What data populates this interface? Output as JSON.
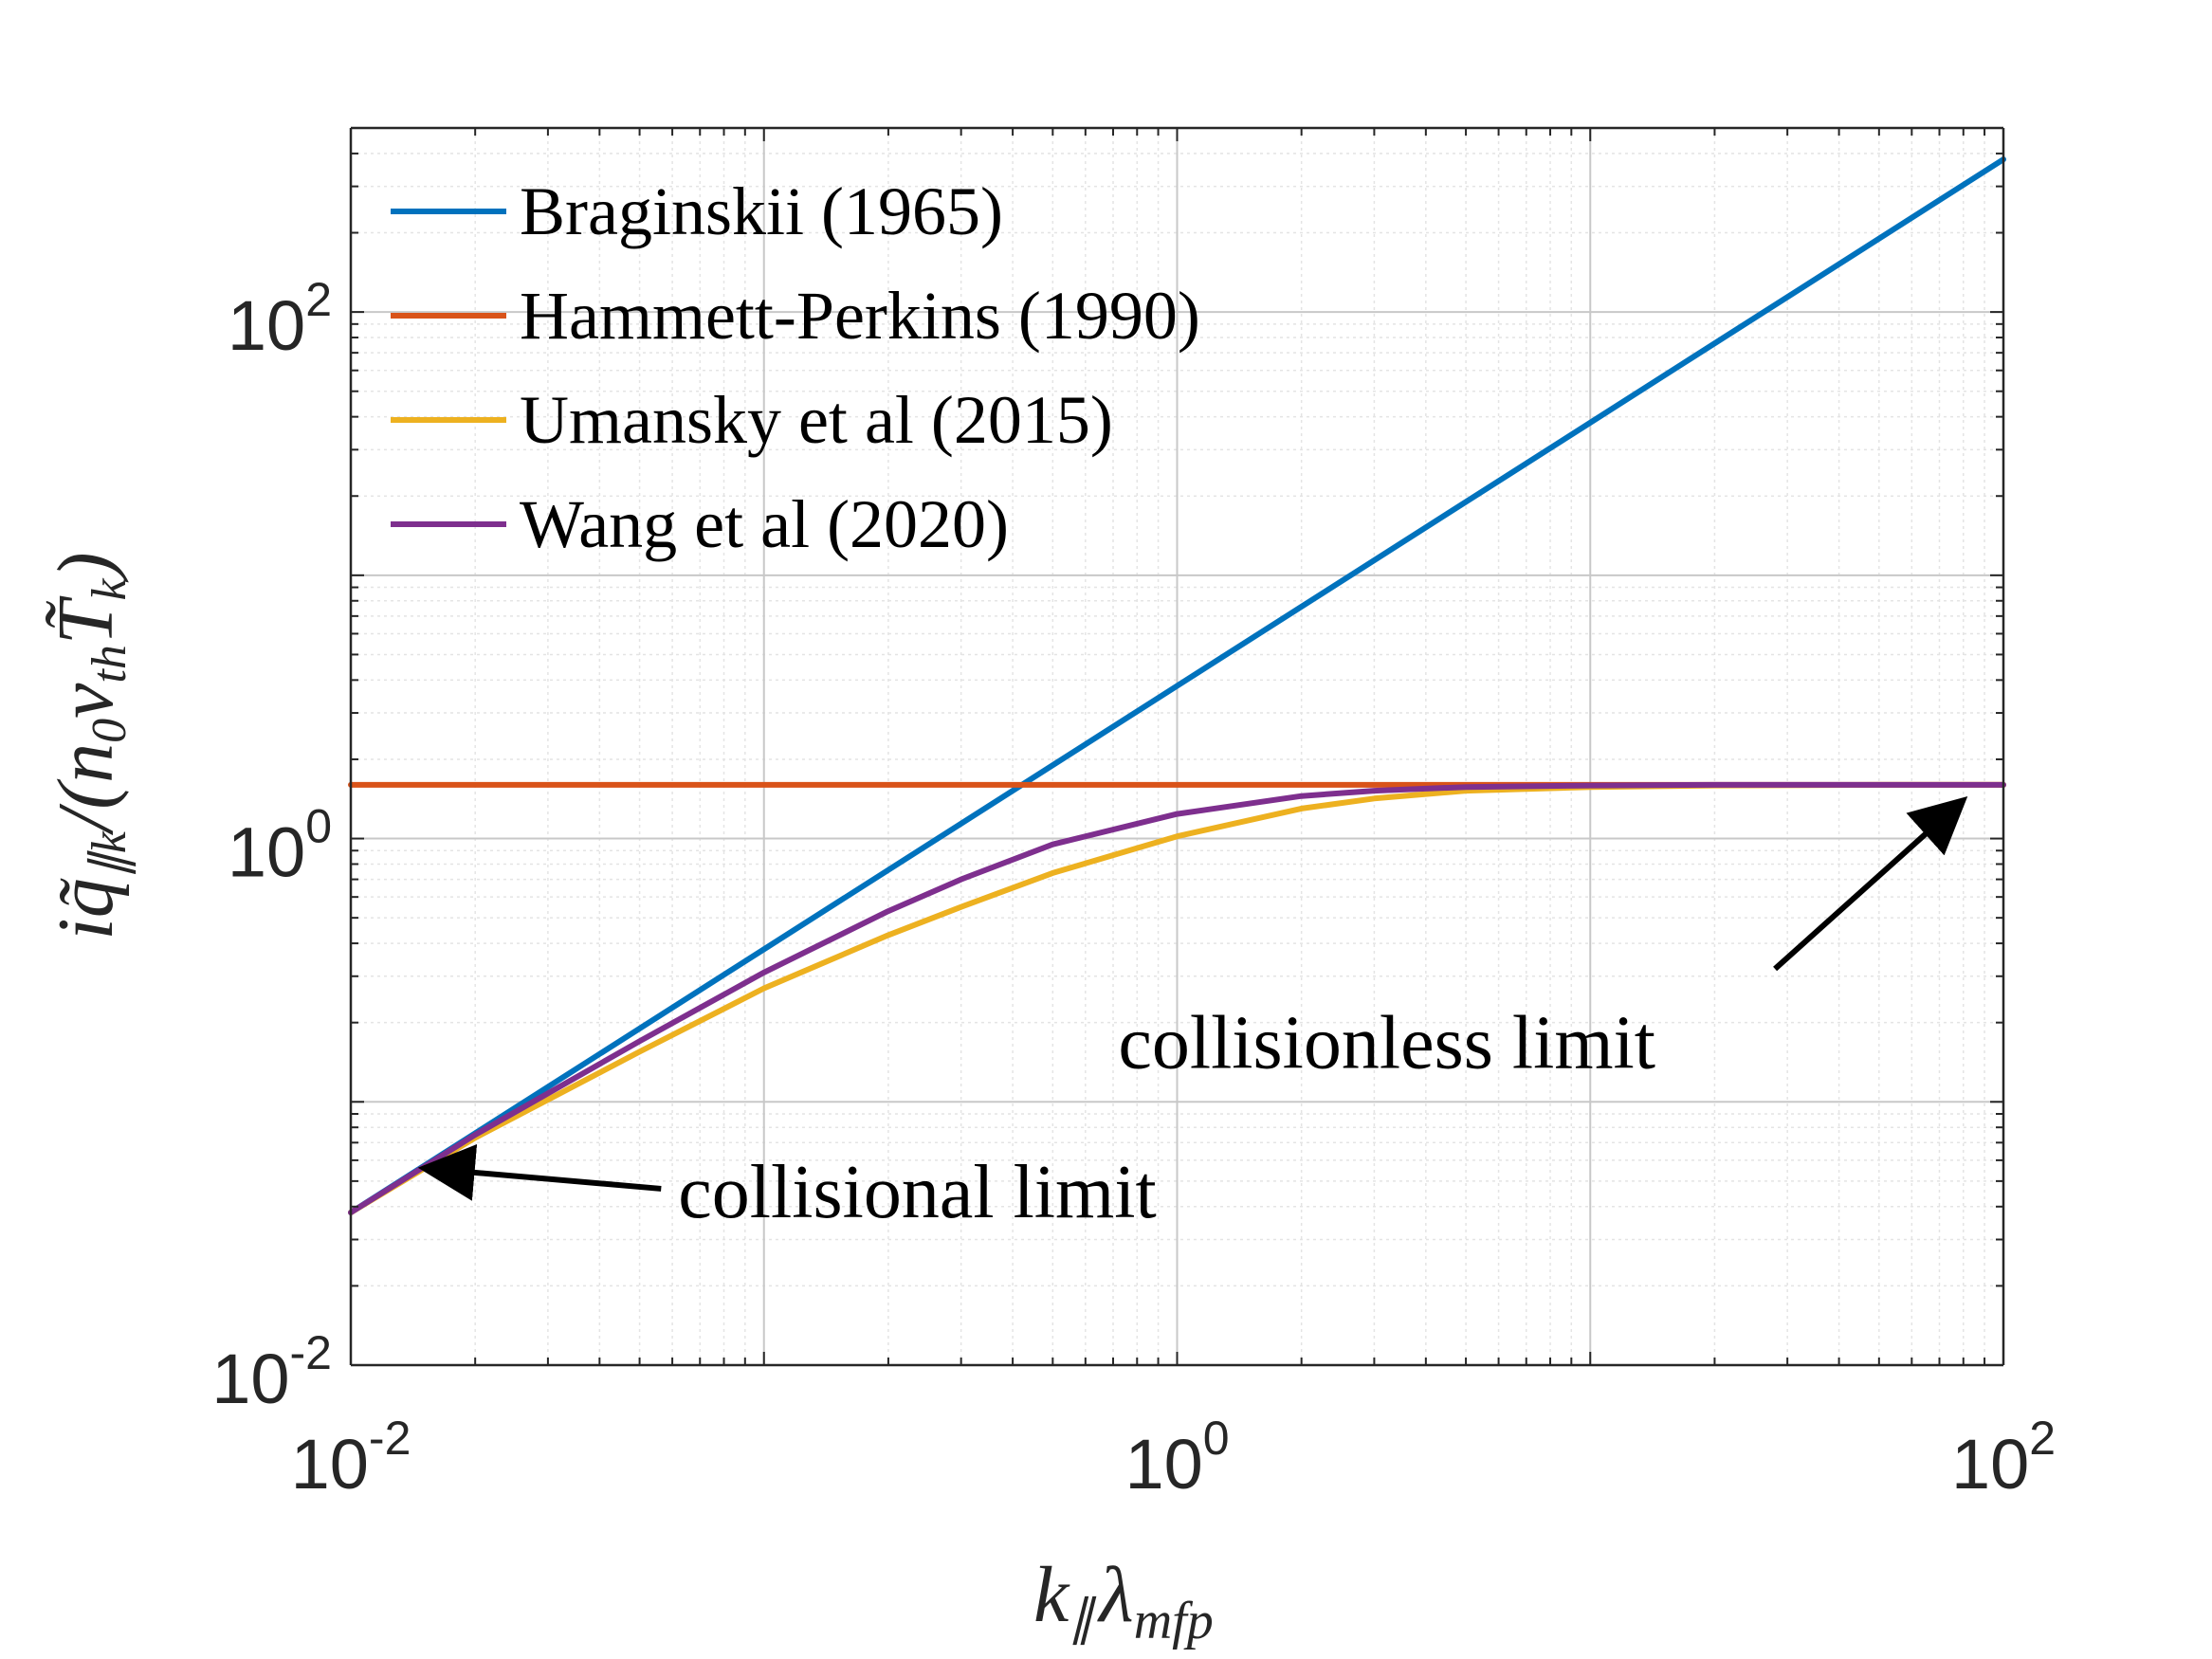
{
  "chart_data": {
    "type": "line",
    "scale": {
      "x": "log",
      "y": "log"
    },
    "xlim": [
      0.01,
      100
    ],
    "ylim": [
      0.01,
      500
    ],
    "grid": true,
    "minor_grid": true,
    "xlabel": "k‖ λ_mfp",
    "xlabel_parts": {
      "base": "k",
      "sub": "∥",
      "lambda": "λ",
      "lambda_sub": "mfp"
    },
    "ylabel": "iq̃‖k/(n0 vth T̃k)",
    "ylabel_parts": {
      "i": "i",
      "q": "q̃",
      "q_sub": "∥k",
      "sep": "/(",
      "n": "n",
      "n_sub": "0",
      "v": "v",
      "v_sub": "th",
      "T": "T̃",
      "T_sub": "k",
      "close": ")"
    },
    "x_ticks": [
      {
        "base": "10",
        "exp": "-2",
        "value": 0.01
      },
      {
        "base": "10",
        "exp": "0",
        "value": 1
      },
      {
        "base": "10",
        "exp": "2",
        "value": 100
      }
    ],
    "y_ticks": [
      {
        "base": "10",
        "exp": "-2",
        "value": 0.01
      },
      {
        "base": "10",
        "exp": "0",
        "value": 1
      },
      {
        "base": "10",
        "exp": "2",
        "value": 100
      }
    ],
    "legend_position": "top-left",
    "series": [
      {
        "name": "Braginskii (1965)",
        "color": "#0072BD",
        "x": [
          0.01,
          0.1,
          1,
          10,
          100
        ],
        "y": [
          0.038,
          0.38,
          3.8,
          38,
          380
        ]
      },
      {
        "name": "Hammett-Perkins (1990)",
        "color": "#D95319",
        "x": [
          0.01,
          100
        ],
        "y": [
          1.6,
          1.6
        ]
      },
      {
        "name": "Umansky et al (2015)",
        "color": "#EDB120",
        "x": [
          0.01,
          0.02,
          0.05,
          0.1,
          0.2,
          0.3,
          0.5,
          1,
          2,
          3,
          5,
          10,
          20,
          50,
          100
        ],
        "y": [
          0.038,
          0.073,
          0.155,
          0.27,
          0.43,
          0.55,
          0.74,
          1.02,
          1.3,
          1.42,
          1.52,
          1.57,
          1.59,
          1.6,
          1.6
        ]
      },
      {
        "name": "Wang et al (2020)",
        "color": "#7E2F8E",
        "x": [
          0.01,
          0.02,
          0.05,
          0.1,
          0.2,
          0.3,
          0.5,
          1,
          2,
          3,
          5,
          10,
          20,
          50,
          100
        ],
        "y": [
          0.038,
          0.075,
          0.17,
          0.31,
          0.53,
          0.7,
          0.95,
          1.24,
          1.45,
          1.52,
          1.57,
          1.59,
          1.6,
          1.6,
          1.6
        ]
      }
    ],
    "annotations": [
      {
        "text": "collisional limit",
        "text_x": 0.062,
        "text_y": 0.046,
        "arrow_to_x": 0.015,
        "arrow_to_y": 0.056
      },
      {
        "text": "collisionless limit",
        "text_x": 0.72,
        "text_y": 0.17,
        "arrow_to_x": 80,
        "arrow_to_y": 1.4
      }
    ]
  }
}
